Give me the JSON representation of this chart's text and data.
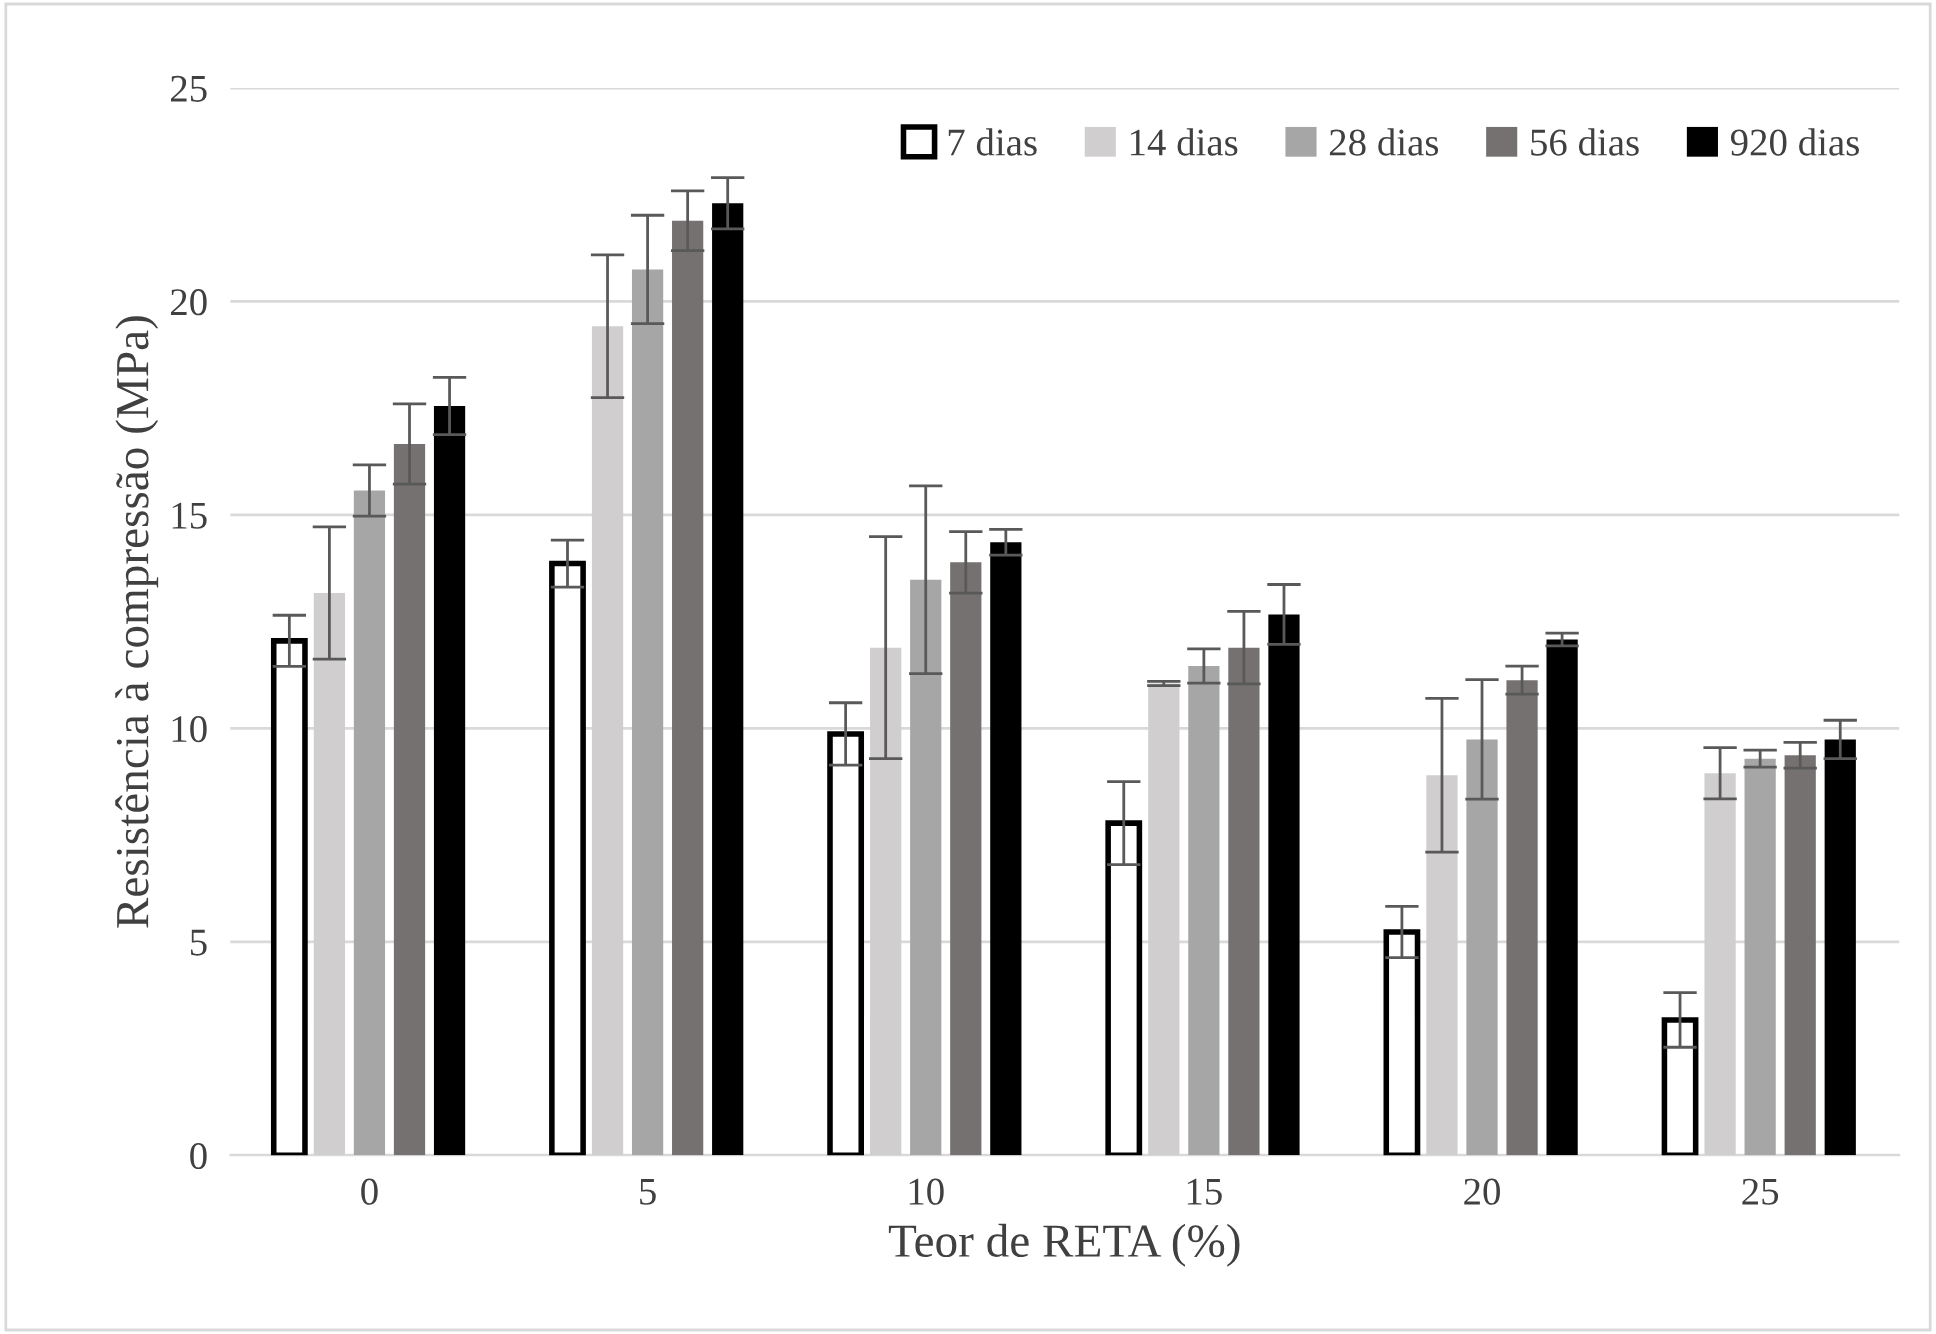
{
  "chart_data": {
    "type": "bar",
    "xlabel": "Teor de RETA (%)",
    "ylabel": "Resistência à compressão (MPa)",
    "categories": [
      "0",
      "5",
      "10",
      "15",
      "20",
      "25"
    ],
    "series": [
      {
        "name": "7 dias",
        "color": "#ffffff",
        "values": [
          12.05,
          13.86,
          9.87,
          7.78,
          5.23,
          3.17
        ],
        "errors": [
          0.6,
          0.55,
          0.73,
          0.97,
          0.6,
          0.64
        ]
      },
      {
        "name": "14 dias",
        "color": "#d0cece",
        "values": [
          13.17,
          19.42,
          11.89,
          11.05,
          8.9,
          8.95
        ],
        "errors": [
          1.55,
          1.67,
          2.6,
          0.05,
          1.8,
          0.6
        ]
      },
      {
        "name": "28 dias",
        "color": "#a6a6a6",
        "values": [
          15.57,
          20.75,
          13.48,
          11.46,
          9.74,
          9.29
        ],
        "errors": [
          0.6,
          1.27,
          2.2,
          0.4,
          1.4,
          0.2
        ]
      },
      {
        "name": "56 dias",
        "color": "#767171",
        "values": [
          16.66,
          21.89,
          13.89,
          11.89,
          11.13,
          9.37
        ],
        "errors": [
          0.94,
          0.7,
          0.72,
          0.85,
          0.33,
          0.3
        ]
      },
      {
        "name": "920 dias",
        "color": "#000000",
        "values": [
          17.55,
          22.3,
          14.36,
          12.67,
          12.08,
          9.74
        ],
        "errors": [
          0.67,
          0.6,
          0.3,
          0.7,
          0.15,
          0.45
        ]
      }
    ],
    "ylim": [
      0,
      25
    ],
    "yticks": [
      0,
      5,
      10,
      15,
      20,
      25
    ],
    "grid": "y",
    "legend": "top right"
  }
}
